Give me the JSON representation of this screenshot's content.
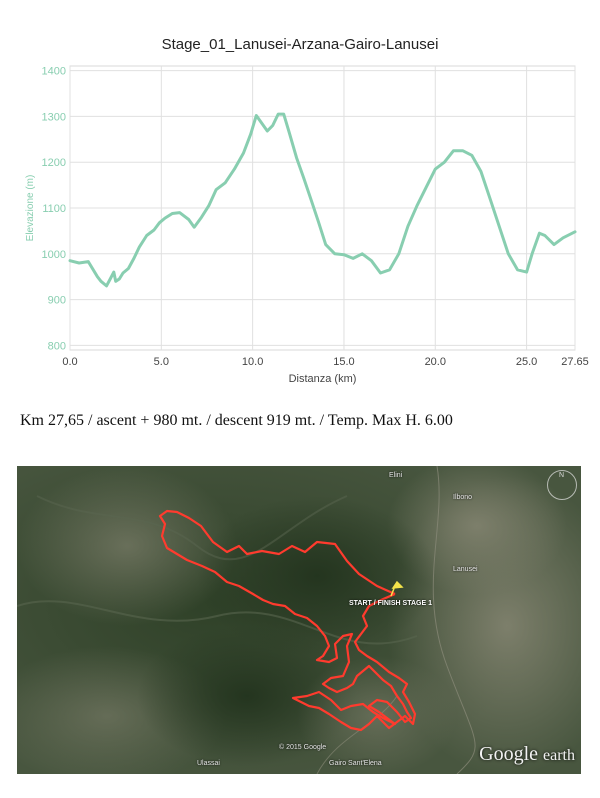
{
  "chart_data": {
    "type": "line",
    "title": "Stage_01_Lanusei-Arzana-Gairo-Lanusei",
    "xlabel": "Distanza (km)",
    "ylabel": "Elevazione (m)",
    "xlim": [
      0,
      27.65
    ],
    "ylim": [
      790,
      1410
    ],
    "xticks": [
      "0.0",
      "5.0",
      "10.0",
      "15.0",
      "20.0",
      "25.0",
      "27.65"
    ],
    "yticks": [
      "800",
      "900",
      "1000",
      "1100",
      "1200",
      "1300",
      "1400"
    ],
    "grid": true,
    "line_color": "#88ceb0",
    "axis_text_color": "#88ceb0",
    "series": [
      {
        "x": [
          0,
          0.5,
          1.0,
          1.5,
          1.7,
          2.0,
          2.2,
          2.4,
          2.5,
          2.7,
          2.9,
          3.2,
          3.5,
          3.8,
          4.2,
          4.6,
          4.9,
          5.2,
          5.6,
          6.0,
          6.5,
          6.8,
          7.2,
          7.6,
          8.0,
          8.5,
          9.0,
          9.5,
          9.9,
          10.2,
          10.5,
          10.8,
          11.1,
          11.4,
          11.7,
          12.0,
          12.4,
          12.8,
          13.2,
          13.6,
          14.0,
          14.5,
          15.0,
          15.5,
          16.0,
          16.5,
          17.0,
          17.5,
          18.0,
          18.5,
          19.0,
          19.5,
          20.0,
          20.5,
          21.0,
          21.5,
          22.0,
          22.5,
          23.0,
          23.5,
          24.0,
          24.5,
          25.0,
          25.3,
          25.7,
          26.0,
          26.5,
          27.0,
          27.65
        ],
        "y": [
          985,
          980,
          983,
          950,
          940,
          930,
          945,
          960,
          940,
          945,
          958,
          968,
          990,
          1015,
          1040,
          1052,
          1068,
          1078,
          1088,
          1090,
          1075,
          1058,
          1080,
          1105,
          1140,
          1155,
          1185,
          1220,
          1262,
          1302,
          1285,
          1268,
          1280,
          1305,
          1305,
          1265,
          1210,
          1165,
          1118,
          1070,
          1020,
          1000,
          998,
          990,
          1000,
          985,
          958,
          965,
          1000,
          1060,
          1105,
          1145,
          1185,
          1200,
          1225,
          1225,
          1215,
          1180,
          1120,
          1060,
          1000,
          965,
          960,
          1000,
          1045,
          1040,
          1020,
          1035,
          1048
        ]
      }
    ]
  },
  "summary": "Km 27,65 / ascent + 980 mt. / descent 919 mt. / Temp. Max  H. 6.00",
  "map": {
    "start_label": "START / FINISH STAGE 1",
    "places": [
      "Elini",
      "Ilbono",
      "Lanusei",
      "Ulassai",
      "Gairo Sant'Elena"
    ],
    "copyright": "© 2015 Google",
    "logo_main": "Google",
    "logo_sub": "earth",
    "compass_n": "N",
    "route_color": "#ff3b2e"
  }
}
